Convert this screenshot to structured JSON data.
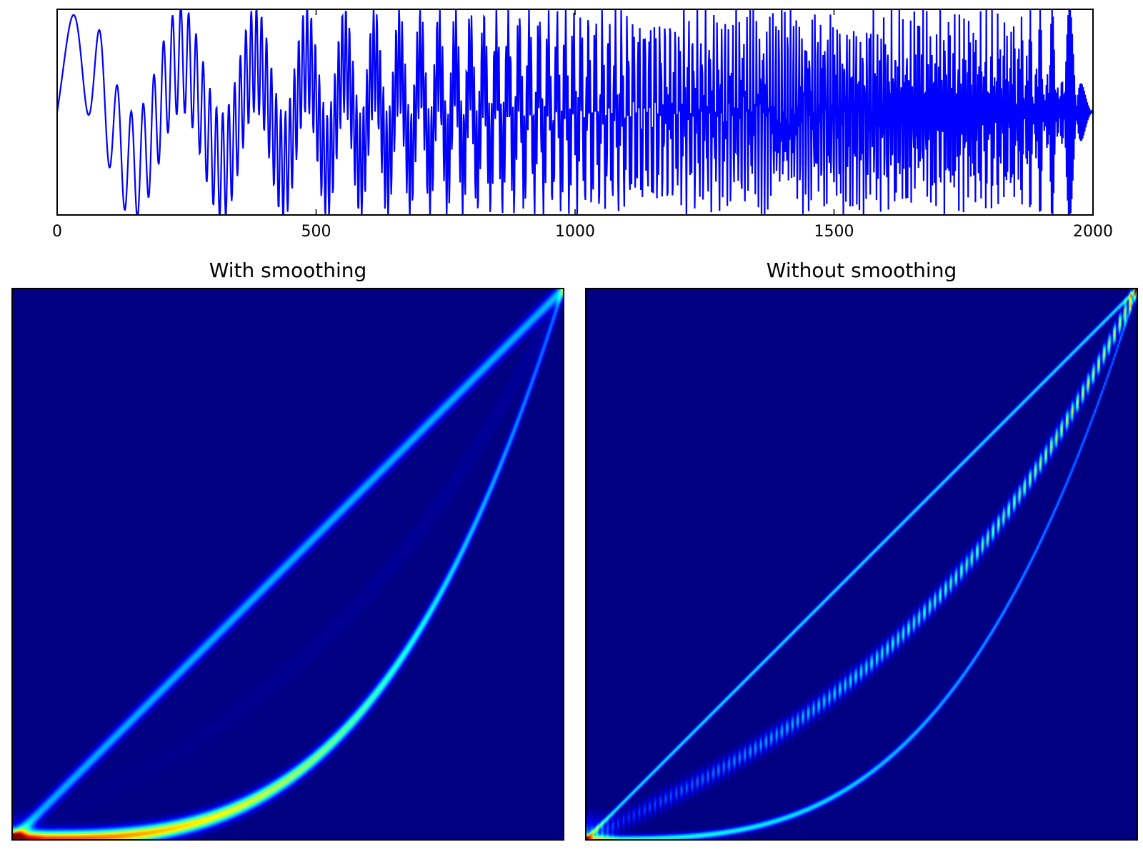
{
  "colors": {
    "signal": "#0000ff",
    "heatmap_background": "#00007f",
    "axes": "#000000"
  },
  "chart_data": [
    {
      "type": "line",
      "title": "",
      "xlabel": "",
      "ylabel": "",
      "xlim": [
        0,
        2000
      ],
      "ylim": [
        -1,
        1
      ],
      "x_ticks": [
        "0",
        "500",
        "1000",
        "1500",
        "2000"
      ],
      "y_ticks": [],
      "grid": false,
      "series": [
        {
          "description_of_shape": "multi-component chirp",
          "components": [
            {
              "kind": "linear-chirp",
              "freq_start_cycles_per_sample": 0.005,
              "freq_end_cycles_per_sample": 0.5
            },
            {
              "kind": "cubic-chirp",
              "freq_start_cycles_per_sample": 0.005,
              "freq_end_cycles_per_sample": 0.5
            }
          ],
          "n_samples": 2000
        }
      ]
    },
    {
      "type": "heatmap",
      "title": "With smoothing",
      "xlabel": "",
      "ylabel": "",
      "colormap": "jet",
      "ridges": [
        {
          "kind": "linear",
          "from": [
            0,
            0
          ],
          "to": [
            1,
            1
          ],
          "intensity": 0.35
        },
        {
          "kind": "cubic",
          "intensity": 0.85
        },
        {
          "kind": "interference",
          "intensity": 0.05
        }
      ]
    },
    {
      "type": "heatmap",
      "title": "Without smoothing",
      "xlabel": "",
      "ylabel": "",
      "colormap": "jet",
      "ridges": [
        {
          "kind": "linear",
          "from": [
            0,
            0
          ],
          "to": [
            1,
            1
          ],
          "intensity": 0.45
        },
        {
          "kind": "cubic",
          "intensity": 0.5
        },
        {
          "kind": "interference",
          "intensity": 0.6
        }
      ]
    }
  ]
}
